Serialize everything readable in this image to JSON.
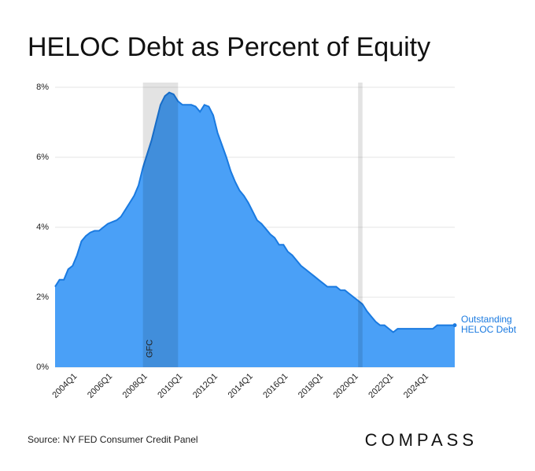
{
  "chart_data": {
    "type": "area",
    "title": "HELOC Debt as Percent of Equity",
    "source": "Source: NY FED Consumer Credit Panel",
    "brand": "COMPASS",
    "categories": [
      null,
      null,
      null,
      null,
      "2004Q1",
      null,
      null,
      null,
      null,
      null,
      null,
      null,
      "2006Q1",
      null,
      null,
      null,
      null,
      null,
      null,
      null,
      "2008Q1",
      null,
      null,
      null,
      null,
      null,
      null,
      null,
      "2010Q1",
      null,
      null,
      null,
      null,
      null,
      null,
      null,
      "2012Q1",
      null,
      null,
      null,
      null,
      null,
      null,
      null,
      "2014Q1",
      null,
      null,
      null,
      null,
      null,
      null,
      null,
      "2016Q1",
      null,
      null,
      null,
      null,
      null,
      null,
      null,
      "2018Q1",
      null,
      null,
      null,
      null,
      null,
      null,
      null,
      "2020Q1",
      null,
      null,
      null,
      null,
      null,
      null,
      null,
      "2022Q1",
      null,
      null,
      null,
      null,
      null,
      null,
      null,
      "2024Q1",
      null,
      null,
      null,
      null,
      null,
      null,
      null
    ],
    "series": [
      {
        "name": "Outstanding HELOC Debt",
        "color": "#4aa0f7",
        "line_color": "#1a7ae0",
        "values": [
          2.3,
          2.5,
          2.5,
          2.8,
          2.9,
          3.2,
          3.6,
          3.75,
          3.85,
          3.9,
          3.9,
          4.0,
          4.1,
          4.15,
          4.2,
          4.3,
          4.5,
          4.7,
          4.9,
          5.2,
          5.7,
          6.1,
          6.5,
          7.0,
          7.5,
          7.75,
          7.85,
          7.8,
          7.6,
          7.5,
          7.5,
          7.5,
          7.45,
          7.3,
          7.5,
          7.45,
          7.2,
          6.7,
          6.35,
          6.0,
          5.6,
          5.3,
          5.05,
          4.9,
          4.7,
          4.45,
          4.2,
          4.1,
          3.95,
          3.8,
          3.7,
          3.5,
          3.5,
          3.3,
          3.2,
          3.05,
          2.9,
          2.8,
          2.7,
          2.6,
          2.5,
          2.4,
          2.3,
          2.3,
          2.3,
          2.2,
          2.2,
          2.1,
          2.0,
          1.9,
          1.8,
          1.6,
          1.45,
          1.3,
          1.2,
          1.2,
          1.1,
          1.0,
          1.1,
          1.1,
          1.1,
          1.1,
          1.1,
          1.1,
          1.1,
          1.1,
          1.1,
          1.2,
          1.2,
          1.2,
          1.2,
          1.2
        ]
      }
    ],
    "bands": [
      {
        "label": "GFC",
        "start": 20,
        "end": 28
      },
      {
        "start": 69,
        "end": 70
      }
    ],
    "ylim": [
      0,
      8
    ],
    "yticks": [
      {
        "value": 0,
        "label": "0%"
      },
      {
        "value": 2,
        "label": "2%"
      },
      {
        "value": 4,
        "label": "4%"
      },
      {
        "value": 6,
        "label": "6%"
      },
      {
        "value": 8,
        "label": "8%"
      }
    ],
    "grid": true
  }
}
